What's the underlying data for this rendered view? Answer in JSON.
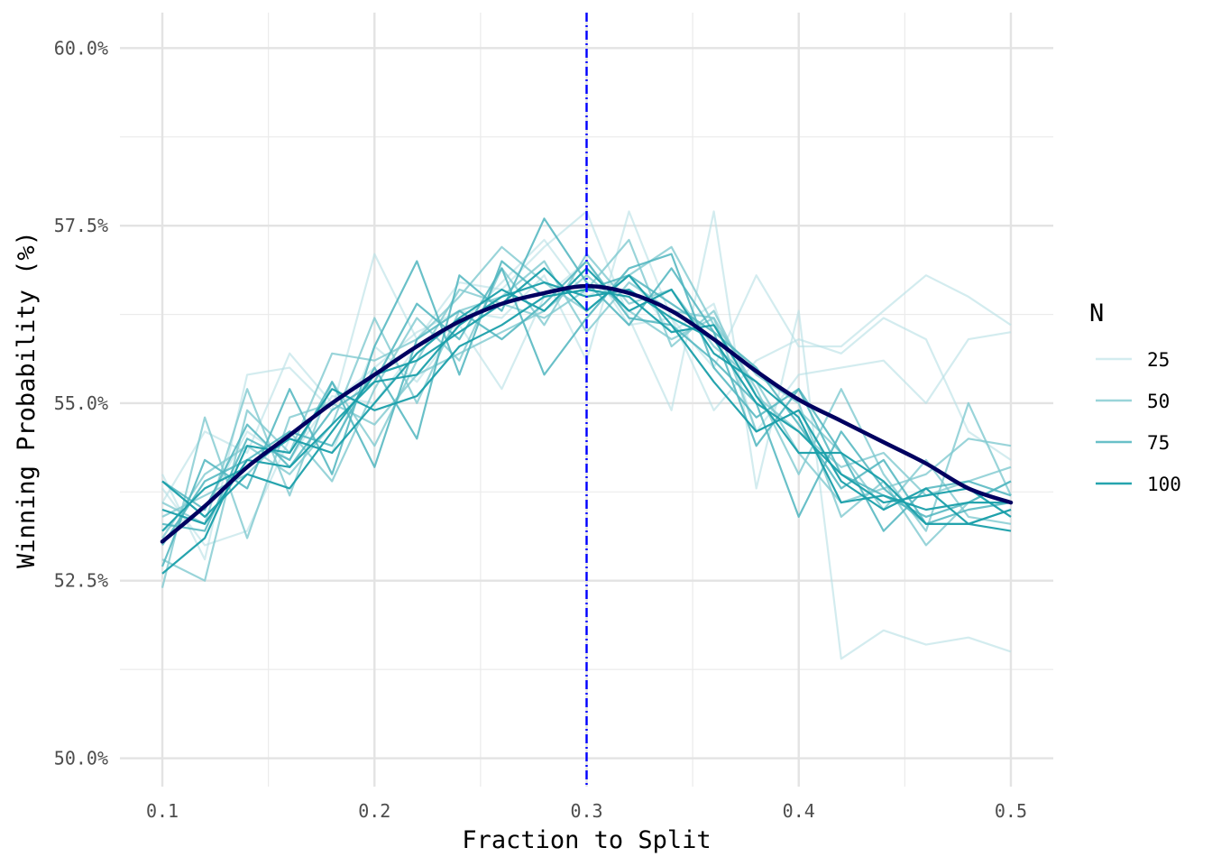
{
  "chart_data": {
    "type": "line",
    "title": "",
    "xlabel": "Fraction to Split",
    "ylabel": "Winning Probability (%)",
    "xlim": [
      0.08,
      0.52
    ],
    "ylim": [
      49.6,
      60.5
    ],
    "x_ticks": [
      0.1,
      0.2,
      0.3,
      0.4,
      0.5
    ],
    "x_tick_labels": [
      "0.1",
      "0.2",
      "0.3",
      "0.4",
      "0.5"
    ],
    "y_ticks": [
      50.0,
      52.5,
      55.0,
      57.5,
      60.0
    ],
    "y_tick_labels": [
      "50.0%",
      "52.5%",
      "55.0%",
      "57.5%",
      "60.0%"
    ],
    "grid": true,
    "x": [
      0.1,
      0.12,
      0.14,
      0.16,
      0.18,
      0.2,
      0.22,
      0.24,
      0.26,
      0.28,
      0.3,
      0.32,
      0.34,
      0.36,
      0.38,
      0.4,
      0.42,
      0.44,
      0.46,
      0.48,
      0.5
    ],
    "series": [
      {
        "group": "25",
        "values": [
          54.0,
          52.8,
          55.4,
          55.5,
          54.9,
          57.1,
          55.9,
          56.7,
          56.6,
          57.2,
          57.7,
          56.2,
          54.9,
          57.7,
          53.8,
          56.3,
          51.4,
          51.8,
          51.6,
          51.7,
          51.5
        ]
      },
      {
        "group": "25",
        "values": [
          53.6,
          54.6,
          54.3,
          55.7,
          55.0,
          55.5,
          56.0,
          56.3,
          56.2,
          56.8,
          55.6,
          57.7,
          56.2,
          55.5,
          56.8,
          55.8,
          55.8,
          56.3,
          56.8,
          56.5,
          56.1
        ]
      },
      {
        "group": "25",
        "values": [
          53.2,
          53.5,
          54.6,
          54.2,
          55.1,
          55.0,
          55.8,
          56.1,
          56.7,
          57.3,
          56.5,
          56.8,
          56.0,
          56.4,
          54.6,
          55.4,
          55.5,
          55.6,
          55.0,
          55.9,
          56.0
        ]
      },
      {
        "group": "25",
        "values": [
          53.8,
          53.0,
          53.2,
          54.5,
          54.3,
          55.8,
          55.3,
          56.1,
          55.2,
          56.5,
          57.0,
          56.1,
          56.2,
          54.9,
          55.6,
          55.9,
          55.7,
          56.2,
          55.9,
          54.6,
          54.2
        ]
      },
      {
        "group": "50",
        "values": [
          52.8,
          52.5,
          54.9,
          54.3,
          55.7,
          55.6,
          55.9,
          56.5,
          57.2,
          56.7,
          56.3,
          56.8,
          57.2,
          56.1,
          55.4,
          55.0,
          53.4,
          53.9,
          53.0,
          53.6,
          53.9
        ]
      },
      {
        "group": "50",
        "values": [
          53.4,
          53.7,
          54.0,
          54.6,
          53.9,
          55.2,
          56.2,
          55.6,
          56.9,
          56.1,
          57.1,
          56.4,
          56.6,
          55.8,
          55.3,
          54.3,
          53.6,
          53.8,
          54.0,
          54.5,
          54.4
        ]
      },
      {
        "group": "50",
        "values": [
          53.1,
          54.0,
          54.4,
          54.0,
          54.7,
          56.2,
          55.0,
          56.3,
          56.5,
          57.0,
          56.0,
          56.7,
          56.3,
          56.2,
          54.6,
          54.9,
          54.3,
          53.5,
          54.2,
          53.4,
          53.3
        ]
      },
      {
        "group": "50",
        "values": [
          52.4,
          54.8,
          53.1,
          54.8,
          55.0,
          54.7,
          55.4,
          55.7,
          56.0,
          56.3,
          56.8,
          56.3,
          55.9,
          56.2,
          55.2,
          54.0,
          55.2,
          54.0,
          53.2,
          55.0,
          53.7
        ]
      },
      {
        "group": "50",
        "values": [
          53.6,
          53.3,
          55.2,
          53.7,
          55.3,
          54.4,
          55.6,
          56.6,
          56.4,
          56.2,
          56.6,
          57.3,
          55.8,
          56.3,
          55.1,
          54.6,
          54.1,
          54.3,
          53.7,
          53.9,
          54.1
        ]
      },
      {
        "group": "75",
        "values": [
          53.9,
          53.5,
          54.7,
          54.1,
          54.9,
          55.3,
          56.4,
          55.9,
          56.9,
          55.4,
          56.2,
          56.9,
          57.1,
          55.5,
          54.8,
          55.2,
          54.0,
          53.7,
          53.4,
          53.6,
          53.9
        ]
      },
      {
        "group": "75",
        "values": [
          53.0,
          53.9,
          54.2,
          54.6,
          54.4,
          55.5,
          54.5,
          56.8,
          56.3,
          57.6,
          56.7,
          56.1,
          56.9,
          56.0,
          55.5,
          54.7,
          53.8,
          54.2,
          53.3,
          53.5,
          53.6
        ]
      },
      {
        "group": "75",
        "values": [
          52.7,
          54.2,
          53.8,
          55.2,
          54.0,
          55.8,
          57.0,
          55.4,
          57.0,
          56.5,
          56.6,
          56.8,
          56.4,
          56.0,
          54.4,
          55.2,
          54.3,
          53.2,
          53.8,
          53.9,
          53.7
        ]
      },
      {
        "group": "75",
        "values": [
          53.3,
          53.2,
          54.5,
          54.2,
          55.3,
          54.1,
          55.9,
          56.3,
          55.9,
          56.4,
          57.0,
          56.2,
          56.1,
          55.6,
          55.0,
          53.4,
          54.6,
          53.8,
          53.3,
          53.3,
          53.5
        ]
      },
      {
        "group": "100",
        "values": [
          53.9,
          53.4,
          54.0,
          53.8,
          54.6,
          55.4,
          55.6,
          56.0,
          56.4,
          56.9,
          56.3,
          56.8,
          56.1,
          55.3,
          54.6,
          54.9,
          53.9,
          53.5,
          53.8,
          53.3,
          53.2
        ]
      },
      {
        "group": "100",
        "values": [
          52.6,
          53.1,
          54.4,
          54.3,
          55.2,
          54.9,
          55.1,
          55.8,
          56.1,
          56.5,
          56.6,
          56.5,
          56.0,
          56.1,
          55.1,
          54.3,
          54.3,
          53.9,
          53.3,
          53.3,
          53.5
        ]
      },
      {
        "group": "100",
        "values": [
          53.2,
          53.8,
          54.1,
          54.5,
          54.3,
          55.0,
          55.7,
          56.2,
          56.6,
          56.3,
          56.9,
          56.3,
          56.6,
          55.7,
          55.3,
          54.8,
          53.6,
          53.7,
          53.5,
          53.6,
          53.6
        ]
      },
      {
        "group": "100",
        "values": [
          53.5,
          53.3,
          54.2,
          54.1,
          54.7,
          55.3,
          55.4,
          56.1,
          56.5,
          56.7,
          56.5,
          56.6,
          56.2,
          55.9,
          55.0,
          54.6,
          54.0,
          53.6,
          53.7,
          53.8,
          53.4
        ]
      }
    ],
    "smooth": {
      "group": "mean",
      "values": [
        53.05,
        53.55,
        54.1,
        54.55,
        55.0,
        55.4,
        55.8,
        56.15,
        56.4,
        56.55,
        56.65,
        56.55,
        56.3,
        55.9,
        55.45,
        55.05,
        54.75,
        54.45,
        54.15,
        53.8,
        53.6
      ]
    },
    "vline": {
      "x": 0.3,
      "color": "#0000ff",
      "style": "dot-dash"
    },
    "legend": {
      "title": "N",
      "position": "right",
      "entries": [
        {
          "label": "25",
          "color": "#b5e0e4",
          "opacity": 0.6
        },
        {
          "label": "50",
          "color": "#7fc9d0",
          "opacity": 0.8
        },
        {
          "label": "75",
          "color": "#4fb5be",
          "opacity": 0.85
        },
        {
          "label": "100",
          "color": "#1a9faa",
          "opacity": 0.95
        }
      ]
    },
    "smooth_color": "#000060"
  }
}
